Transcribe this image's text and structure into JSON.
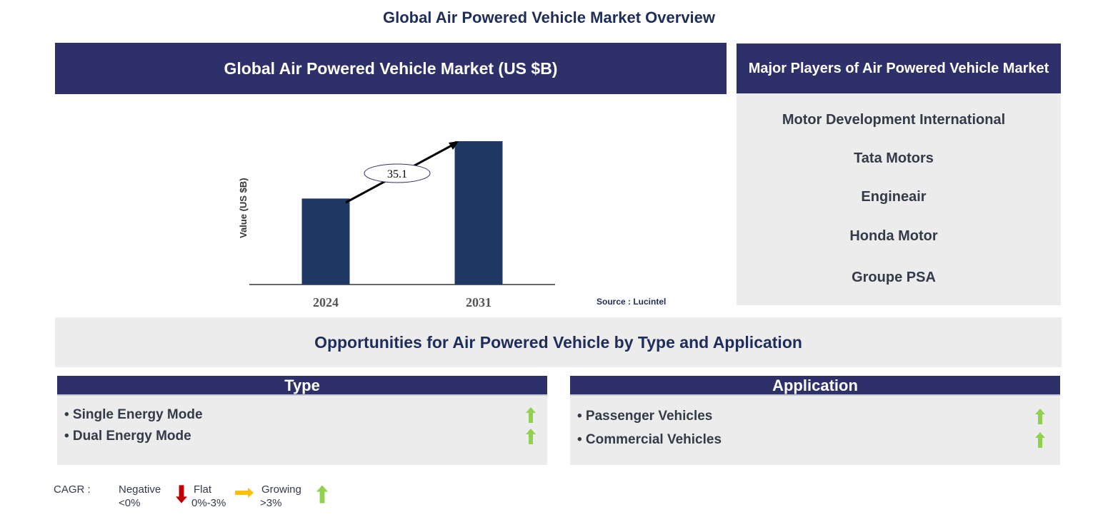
{
  "title": "Global Air Powered Vehicle Market Overview",
  "chart_panel": {
    "header": "Global Air Powered Vehicle Market (US $B)"
  },
  "chart_data": {
    "type": "bar",
    "categories": [
      "2024",
      "2031"
    ],
    "relative_values": [
      0.6,
      1.0
    ],
    "ylabel": "Value (US $B)",
    "xlabel": "",
    "annotation": "35.1",
    "source": "Source : Lucintel",
    "bar_color": "#203864",
    "grid": false
  },
  "players": {
    "header": "Major Players of Air Powered Vehicle Market",
    "items": [
      "Motor Development International",
      "Tata Motors",
      "Engineair",
      "Honda Motor",
      "Groupe PSA"
    ]
  },
  "opportunities": {
    "header": "Opportunities for Air Powered Vehicle by Type and Application",
    "type": {
      "header": "Type",
      "items": [
        {
          "label": "• Single Energy Mode",
          "trend": "growing"
        },
        {
          "label": "• Dual Energy Mode",
          "trend": "growing"
        }
      ]
    },
    "application": {
      "header": "Application",
      "items": [
        {
          "label": "• Passenger Vehicles",
          "trend": "growing"
        },
        {
          "label": "• Commercial Vehicles",
          "trend": "growing"
        }
      ]
    }
  },
  "legend": {
    "label": "CAGR :",
    "negative": "Negative",
    "negative_range": "<0%",
    "flat": "Flat",
    "flat_range": "0%-3%",
    "growing": "Growing",
    "growing_range": ">3%",
    "colors": {
      "negative": "#c00000",
      "flat": "#ffc000",
      "growing": "#92d050"
    }
  }
}
